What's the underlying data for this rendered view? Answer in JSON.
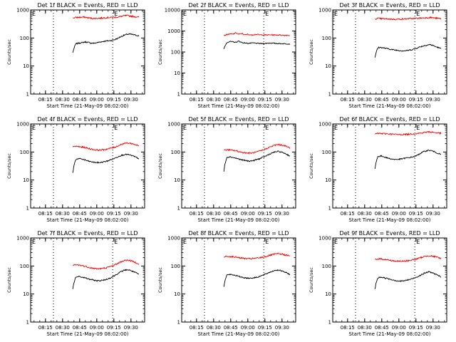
{
  "figure": {
    "background": "#ffffff",
    "series_colors": {
      "events": "#000000",
      "lld": "#ff0000"
    }
  },
  "chart_data": [
    {
      "type": "line",
      "title": "Det 1f BLACK = Events, RED = LLD",
      "xlabel": "Start Time (21-May-09 08:02:00)",
      "ylabel": "Counts/sec",
      "ylim": [
        1,
        1000
      ],
      "y_scale": "log",
      "yticks": [
        "1",
        "10",
        "100",
        "1000"
      ],
      "xticks": [
        "08:15",
        "08:30",
        "08:45",
        "09:00",
        "09:15",
        "09:30"
      ],
      "x_range": [
        "08:02",
        "09:42"
      ],
      "vlines": [
        "08:22",
        "09:14"
      ],
      "flag_labels": [
        "E",
        "E"
      ],
      "x_start": "08:39",
      "x_end": "09:37",
      "series": [
        {
          "color": "#000000",
          "values": [
            30,
            62,
            66,
            68,
            72,
            70,
            66,
            65,
            68,
            72,
            75,
            78,
            80,
            82,
            88,
            98,
            112,
            125,
            135,
            138,
            132,
            126,
            118
          ]
        },
        {
          "color": "#ff0000",
          "values": [
            520,
            540,
            545,
            550,
            555,
            530,
            510,
            500,
            505,
            510,
            520,
            530,
            540,
            545,
            550,
            560,
            590,
            620,
            630,
            610,
            590,
            570,
            555
          ]
        }
      ]
    },
    {
      "type": "line",
      "title": "Det 2f BLACK = Events, RED = LLD",
      "xlabel": "Start Time (21-May-09 08:02:00)",
      "ylabel": "Counts/sec",
      "ylim": [
        1,
        10000
      ],
      "y_scale": "log",
      "yticks": [
        "1",
        "10",
        "100",
        "1000",
        "10000"
      ],
      "xticks": [
        "08:15",
        "08:30",
        "08:45",
        "09:00",
        "09:15",
        "09:30"
      ],
      "x_range": [
        "08:02",
        "09:42"
      ],
      "vlines": [
        "08:22",
        "09:14"
      ],
      "flag_labels": [
        "E",
        "E"
      ],
      "x_start": "08:39",
      "x_end": "09:37",
      "series": [
        {
          "color": "#000000",
          "values": [
            140,
            280,
            320,
            300,
            290,
            330,
            280,
            270,
            260,
            265,
            270,
            260,
            255,
            250,
            260,
            270,
            265,
            260,
            255,
            250,
            250,
            245,
            240
          ]
        },
        {
          "color": "#ff0000",
          "values": [
            600,
            680,
            720,
            700,
            820,
            690,
            760,
            650,
            700,
            640,
            680,
            690,
            650,
            660,
            640,
            650,
            660,
            640,
            650,
            640,
            620,
            630,
            610
          ]
        }
      ]
    },
    {
      "type": "line",
      "title": "Det 3f BLACK = Events, RED = LLD",
      "xlabel": "Start Time (21-May-09 08:02:00)",
      "ylabel": "Counts/sec",
      "ylim": [
        1,
        1000
      ],
      "y_scale": "log",
      "yticks": [
        "1",
        "10",
        "100",
        "1000"
      ],
      "xticks": [
        "08:15",
        "08:30",
        "08:45",
        "09:00",
        "09:15",
        "09:30"
      ],
      "x_range": [
        "08:02",
        "09:42"
      ],
      "vlines": [
        "08:22",
        "09:14"
      ],
      "flag_labels": [
        "E",
        "E"
      ],
      "x_start": "08:39",
      "x_end": "09:37",
      "series": [
        {
          "color": "#000000",
          "values": [
            20,
            45,
            46,
            44,
            42,
            40,
            38,
            37,
            36,
            35,
            35,
            36,
            38,
            40,
            44,
            48,
            52,
            55,
            58,
            56,
            50,
            46,
            42
          ]
        },
        {
          "color": "#ff0000",
          "values": [
            480,
            500,
            490,
            485,
            480,
            475,
            470,
            465,
            470,
            475,
            480,
            490,
            495,
            500,
            505,
            510,
            520,
            530,
            540,
            530,
            515,
            500,
            490
          ]
        }
      ]
    },
    {
      "type": "line",
      "title": "Det 4f BLACK = Events, RED = LLD",
      "xlabel": "Start Time (21-May-09 08:02:00)",
      "ylabel": "Counts/sec",
      "ylim": [
        1,
        1000
      ],
      "y_scale": "log",
      "yticks": [
        "1",
        "10",
        "100",
        "1000"
      ],
      "xticks": [
        "08:15",
        "08:30",
        "08:45",
        "09:00",
        "09:15",
        "09:30"
      ],
      "x_range": [
        "08:02",
        "09:42"
      ],
      "vlines": [
        "08:22",
        "09:14"
      ],
      "flag_labels": [
        "E",
        "E"
      ],
      "x_start": "08:39",
      "x_end": "09:37",
      "series": [
        {
          "color": "#000000",
          "values": [
            18,
            55,
            58,
            56,
            52,
            48,
            45,
            43,
            42,
            42,
            44,
            46,
            50,
            55,
            60,
            68,
            75,
            80,
            82,
            78,
            72,
            65,
            58
          ]
        },
        {
          "color": "#ff0000",
          "values": [
            150,
            160,
            155,
            150,
            145,
            135,
            128,
            122,
            118,
            118,
            120,
            125,
            132,
            140,
            150,
            165,
            185,
            200,
            210,
            205,
            195,
            180,
            165
          ]
        }
      ]
    },
    {
      "type": "line",
      "title": "Det 5f BLACK = Events, RED = LLD",
      "xlabel": "Start Time (21-May-09 08:02:00)",
      "ylabel": "Counts/sec",
      "ylim": [
        1,
        1000
      ],
      "y_scale": "log",
      "yticks": [
        "1",
        "10",
        "100",
        "1000"
      ],
      "xticks": [
        "08:15",
        "08:30",
        "08:45",
        "09:00",
        "09:15",
        "09:30"
      ],
      "x_range": [
        "08:02",
        "09:42"
      ],
      "vlines": [
        "08:22",
        "09:14"
      ],
      "flag_labels": [
        "E",
        "E"
      ],
      "x_start": "08:39",
      "x_end": "09:37",
      "series": [
        {
          "color": "#000000",
          "values": [
            20,
            65,
            68,
            64,
            60,
            56,
            52,
            50,
            48,
            48,
            50,
            54,
            58,
            65,
            72,
            82,
            92,
            100,
            105,
            100,
            92,
            82,
            72
          ]
        },
        {
          "color": "#ff0000",
          "values": [
            115,
            120,
            118,
            115,
            110,
            104,
            98,
            95,
            92,
            92,
            95,
            100,
            108,
            118,
            130,
            145,
            160,
            175,
            185,
            180,
            170,
            155,
            140
          ]
        }
      ]
    },
    {
      "type": "line",
      "title": "Det 6f BLACK = Events, RED = LLD",
      "xlabel": "Start Time (21-May-09 08:02:00)",
      "ylabel": "Counts/sec",
      "ylim": [
        1,
        1000
      ],
      "y_scale": "log",
      "yticks": [
        "1",
        "10",
        "100",
        "1000"
      ],
      "xticks": [
        "08:15",
        "08:30",
        "08:45",
        "09:00",
        "09:15",
        "09:30"
      ],
      "x_range": [
        "08:02",
        "09:42"
      ],
      "vlines": [
        "08:22",
        "09:14"
      ],
      "flag_labels": [
        "E",
        "E"
      ],
      "x_start": "08:39",
      "x_end": "09:37",
      "series": [
        {
          "color": "#000000",
          "values": [
            25,
            70,
            72,
            68,
            62,
            58,
            55,
            54,
            55,
            57,
            60,
            62,
            65,
            68,
            75,
            88,
            100,
            110,
            115,
            110,
            100,
            90,
            80
          ]
        },
        {
          "color": "#ff0000",
          "values": [
            440,
            460,
            455,
            450,
            445,
            440,
            430,
            425,
            420,
            420,
            425,
            430,
            440,
            450,
            460,
            470,
            490,
            510,
            520,
            510,
            495,
            480,
            465
          ]
        }
      ]
    },
    {
      "type": "line",
      "title": "Det 7f BLACK = Events, RED = LLD",
      "xlabel": "Start Time (21-May-09 08:02:00)",
      "ylabel": "Counts/sec",
      "ylim": [
        1,
        1000
      ],
      "y_scale": "log",
      "yticks": [
        "1",
        "10",
        "100",
        "1000"
      ],
      "xticks": [
        "08:15",
        "08:30",
        "08:45",
        "09:00",
        "09:15",
        "09:30"
      ],
      "x_range": [
        "08:02",
        "09:42"
      ],
      "vlines": [
        "08:22",
        "09:14"
      ],
      "flag_labels": [
        "E",
        "E"
      ],
      "x_start": "08:39",
      "x_end": "09:37",
      "series": [
        {
          "color": "#000000",
          "values": [
            15,
            40,
            42,
            40,
            38,
            35,
            33,
            31,
            30,
            30,
            31,
            33,
            36,
            40,
            46,
            54,
            62,
            70,
            74,
            70,
            64,
            57,
            50
          ]
        },
        {
          "color": "#ff0000",
          "values": [
            105,
            110,
            108,
            104,
            98,
            92,
            86,
            82,
            80,
            80,
            82,
            86,
            92,
            100,
            110,
            125,
            140,
            155,
            162,
            156,
            146,
            132,
            118
          ]
        }
      ]
    },
    {
      "type": "line",
      "title": "Det 8f BLACK = Events, RED = LLD",
      "xlabel": "Start Time (21-May-09 08:02:00)",
      "ylabel": "Counts/sec",
      "ylim": [
        1,
        1000
      ],
      "y_scale": "log",
      "yticks": [
        "1",
        "10",
        "100",
        "1000"
      ],
      "xticks": [
        "08:15",
        "08:30",
        "08:45",
        "09:00",
        "09:15",
        "09:30"
      ],
      "x_range": [
        "08:02",
        "09:42"
      ],
      "vlines": [
        "08:22",
        "09:14"
      ],
      "flag_labels": [
        "E",
        "E"
      ],
      "x_start": "08:39",
      "x_end": "09:37",
      "series": [
        {
          "color": "#000000",
          "values": [
            18,
            48,
            50,
            48,
            46,
            42,
            40,
            38,
            37,
            37,
            38,
            40,
            43,
            47,
            52,
            58,
            64,
            70,
            72,
            68,
            62,
            56,
            50
          ]
        },
        {
          "color": "#ff0000",
          "values": [
            210,
            220,
            218,
            214,
            208,
            200,
            192,
            186,
            182,
            182,
            185,
            190,
            198,
            208,
            220,
            235,
            252,
            268,
            275,
            268,
            255,
            240,
            225
          ]
        }
      ]
    },
    {
      "type": "line",
      "title": "Det 9f BLACK = Events, RED = LLD",
      "xlabel": "Start Time (21-May-09 08:02:00)",
      "ylabel": "Counts/sec",
      "ylim": [
        1,
        1000
      ],
      "y_scale": "log",
      "yticks": [
        "1",
        "10",
        "100",
        "1000"
      ],
      "xticks": [
        "08:15",
        "08:30",
        "08:45",
        "09:00",
        "09:15",
        "09:30"
      ],
      "x_range": [
        "08:02",
        "09:42"
      ],
      "vlines": [
        "08:22",
        "09:14"
      ],
      "flag_labels": [
        "E",
        "E"
      ],
      "x_start": "08:39",
      "x_end": "09:37",
      "series": [
        {
          "color": "#000000",
          "values": [
            15,
            38,
            40,
            38,
            36,
            34,
            32,
            30,
            29,
            29,
            30,
            32,
            34,
            37,
            41,
            46,
            52,
            58,
            62,
            58,
            52,
            46,
            40
          ]
        },
        {
          "color": "#ff0000",
          "values": [
            170,
            180,
            178,
            174,
            168,
            160,
            154,
            150,
            148,
            148,
            150,
            155,
            162,
            170,
            180,
            195,
            210,
            225,
            232,
            225,
            214,
            200,
            188
          ]
        }
      ]
    }
  ]
}
